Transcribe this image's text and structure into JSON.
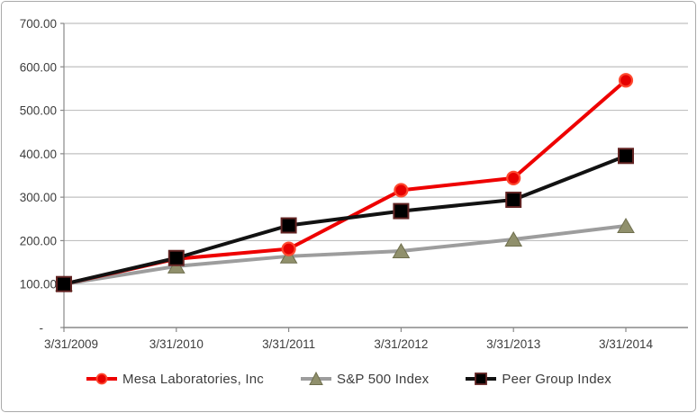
{
  "chart_data": {
    "type": "line",
    "title": "",
    "xlabel": "",
    "ylabel": "",
    "ylim": [
      0,
      700
    ],
    "y_tick_interval": 100,
    "grid": true,
    "legend_position": "bottom",
    "categories": [
      "3/31/2009",
      "3/31/2010",
      "3/31/2011",
      "3/31/2012",
      "3/31/2013",
      "3/31/2014"
    ],
    "y_ticks": [
      {
        "value": 700,
        "label": "700.00"
      },
      {
        "value": 600,
        "label": "600.00"
      },
      {
        "value": 500,
        "label": "500.00"
      },
      {
        "value": 400,
        "label": "400.00"
      },
      {
        "value": 300,
        "label": "300.00"
      },
      {
        "value": 200,
        "label": "200.00"
      },
      {
        "value": 100,
        "label": "100.00"
      },
      {
        "value": 0,
        "label": "-"
      }
    ],
    "series": [
      {
        "name": "Mesa Laboratories, Inc",
        "marker": "circle",
        "line_color": "#ee0000",
        "marker_fill": "#e60000",
        "marker_stroke": "#ff4930",
        "z": 2,
        "values": [
          100,
          158,
          181,
          316,
          344,
          569
        ]
      },
      {
        "name": "S&P 500 Index",
        "marker": "triangle",
        "line_color": "#9d9d9d",
        "marker_fill": "#90906c",
        "marker_stroke": "#6f6f4e",
        "z": 1,
        "values": [
          100,
          141,
          164,
          176,
          203,
          234
        ]
      },
      {
        "name": "Peer Group Index",
        "marker": "square",
        "line_color": "#121212",
        "marker_fill": "#000000",
        "marker_stroke": "#632423",
        "z": 3,
        "values": [
          100,
          160,
          235,
          268,
          294,
          395
        ]
      }
    ],
    "colors": {
      "gridline": "#c0c0c0",
      "axis_line": "#898989",
      "tick_label": "#3d3d3d",
      "background": "#ffffff",
      "frame_border": "#a9a9a9"
    }
  }
}
